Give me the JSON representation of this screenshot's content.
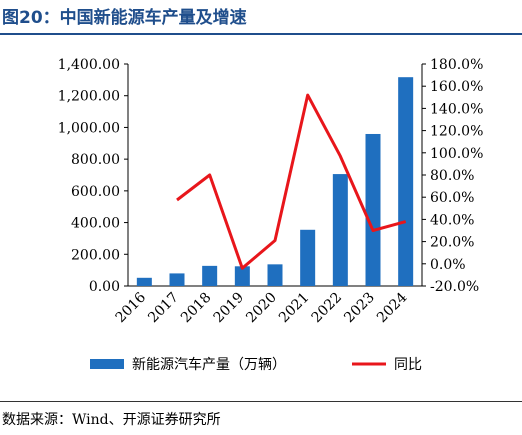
{
  "figure": {
    "title": "图20：中国新能源车产量及增速",
    "source": "数据来源：Wind、开源证券研究所"
  },
  "chart_data": {
    "type": "bar",
    "title": "图20：中国新能源车产量及增速",
    "categories": [
      "2016",
      "2017",
      "2018",
      "2019",
      "2020",
      "2021",
      "2022",
      "2023",
      "2024"
    ],
    "series": [
      {
        "name": "新能源汽车产量（万辆）",
        "type": "bar",
        "axis": "left",
        "color": "#1f6fbf",
        "values": [
          51.7,
          79.4,
          127.0,
          124.2,
          136.6,
          354.5,
          705.8,
          958.7,
          1316.8
        ]
      },
      {
        "name": "同比",
        "type": "line",
        "axis": "right",
        "color": "#e8161b",
        "values": [
          null,
          57.5,
          80.0,
          -4.0,
          21.0,
          152.0,
          97.0,
          30.0,
          38.0
        ]
      }
    ],
    "y_left": {
      "ylim": [
        0,
        1400
      ],
      "ticks": [
        "0.00",
        "200.00",
        "400.00",
        "600.00",
        "800.00",
        "1,000.00",
        "1,200.00",
        "1,400.00"
      ]
    },
    "y_right": {
      "ylim": [
        -20,
        180
      ],
      "ticks": [
        "-20.0%",
        "0.0%",
        "20.0%",
        "40.0%",
        "60.0%",
        "80.0%",
        "100.0%",
        "120.0%",
        "140.0%",
        "160.0%",
        "180.0%"
      ]
    },
    "legend_position": "bottom",
    "grid": false
  }
}
